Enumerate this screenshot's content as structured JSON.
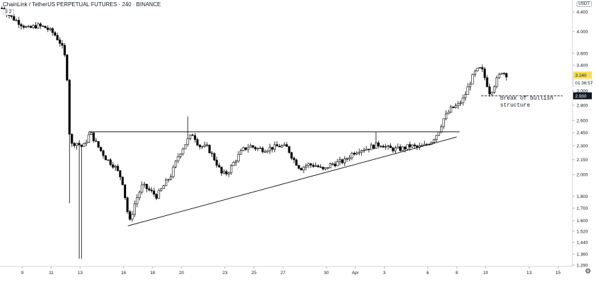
{
  "header": {
    "symbol_line": "ChainLink / TetherUS PERPETUAL FUTURES · 240 · BINANCE",
    "interval_chip": "3  2",
    "currency": "USDT"
  },
  "colors": {
    "up_candle": "#ffffff",
    "down_candle": "#000000",
    "wick": "#000000",
    "trendline": "#000000",
    "last_price_tag": "#f5e04b",
    "level_tag": "#131722"
  },
  "chart_data": {
    "type": "candlestick",
    "y_scale": "log",
    "ylim": [
      1.29,
      4.6
    ],
    "y_ticks": [
      "4.400",
      "4.000",
      "3.600",
      "3.400",
      "3.000",
      "2.800",
      "2.600",
      "2.450",
      "2.300",
      "2.150",
      "2.000",
      "1.800",
      "1.700",
      "1.600",
      "1.520",
      "1.440",
      "1.360",
      "1.290"
    ],
    "x_ticks": [
      {
        "label": "9",
        "day": 9
      },
      {
        "label": "11",
        "day": 11
      },
      {
        "label": "13",
        "day": 13
      },
      {
        "label": "16",
        "day": 16
      },
      {
        "label": "18",
        "day": 18
      },
      {
        "label": "20",
        "day": 20
      },
      {
        "label": "23",
        "day": 23
      },
      {
        "label": "25",
        "day": 25
      },
      {
        "label": "27",
        "day": 27
      },
      {
        "label": "30",
        "day": 30
      },
      {
        "label": "Apr",
        "day": 32
      },
      {
        "label": "3",
        "day": 34
      },
      {
        "label": "6",
        "day": 37
      },
      {
        "label": "8",
        "day": 39
      },
      {
        "label": "10",
        "day": 41
      },
      {
        "label": "13",
        "day": 44
      },
      {
        "label": "15",
        "day": 46
      }
    ],
    "price_tags": [
      {
        "label": "3.240",
        "value": 3.24,
        "kind": "last"
      },
      {
        "label": "01:36:57",
        "value": 3.12,
        "kind": "countdown"
      },
      {
        "label": "2.930",
        "value": 2.93,
        "kind": "level"
      }
    ],
    "trendlines": [
      {
        "name": "horizontal-resistance",
        "from": {
          "day": 13.6,
          "price": 2.46
        },
        "to": {
          "day": 39.2,
          "price": 2.46
        },
        "style": "solid"
      },
      {
        "name": "ascending-support",
        "from": {
          "day": 16.3,
          "price": 1.56
        },
        "to": {
          "day": 39.0,
          "price": 2.4
        },
        "style": "solid"
      },
      {
        "name": "break-of-structure",
        "from": {
          "day": 40.7,
          "price": 2.93
        },
        "to": {
          "day": 46.3,
          "price": 2.93
        },
        "style": "dashed"
      }
    ],
    "annotation": {
      "line1": "break of bullish",
      "line2": "structure",
      "day": 42.0,
      "price": 2.84
    },
    "ohlc_keypoints": [
      [
        7.6,
        4.48
      ],
      [
        8.2,
        4.3
      ],
      [
        8.8,
        4.18
      ],
      [
        9.4,
        4.05
      ],
      [
        10.0,
        4.12
      ],
      [
        10.6,
        4.08
      ],
      [
        11.2,
        3.96
      ],
      [
        11.6,
        3.8
      ],
      [
        11.9,
        3.62
      ],
      [
        12.1,
        3.2
      ],
      [
        12.3,
        2.3
      ],
      [
        12.7,
        2.34
      ],
      [
        13.2,
        2.28
      ],
      [
        13.7,
        2.45
      ],
      [
        14.2,
        2.3
      ],
      [
        14.8,
        2.16
      ],
      [
        15.4,
        2.08
      ],
      [
        15.9,
        1.95
      ],
      [
        16.2,
        1.72
      ],
      [
        16.4,
        1.58
      ],
      [
        16.8,
        1.75
      ],
      [
        17.3,
        1.9
      ],
      [
        17.8,
        1.85
      ],
      [
        18.3,
        1.8
      ],
      [
        18.8,
        1.9
      ],
      [
        19.3,
        2.0
      ],
      [
        19.8,
        2.2
      ],
      [
        20.4,
        2.36
      ],
      [
        20.8,
        2.44
      ],
      [
        21.2,
        2.3
      ],
      [
        21.8,
        2.28
      ],
      [
        22.3,
        2.15
      ],
      [
        22.8,
        2.0
      ],
      [
        23.2,
        2.02
      ],
      [
        23.7,
        2.14
      ],
      [
        24.2,
        2.25
      ],
      [
        24.7,
        2.3
      ],
      [
        25.2,
        2.27
      ],
      [
        25.7,
        2.26
      ],
      [
        26.3,
        2.28
      ],
      [
        26.8,
        2.3
      ],
      [
        27.3,
        2.28
      ],
      [
        27.7,
        2.16
      ],
      [
        28.2,
        2.06
      ],
      [
        28.7,
        2.1
      ],
      [
        29.3,
        2.09
      ],
      [
        29.8,
        2.04
      ],
      [
        30.3,
        2.1
      ],
      [
        30.8,
        2.12
      ],
      [
        31.3,
        2.14
      ],
      [
        31.8,
        2.22
      ],
      [
        32.3,
        2.26
      ],
      [
        32.8,
        2.27
      ],
      [
        33.3,
        2.3
      ],
      [
        33.8,
        2.32
      ],
      [
        34.3,
        2.27
      ],
      [
        34.8,
        2.26
      ],
      [
        35.3,
        2.27
      ],
      [
        35.8,
        2.3
      ],
      [
        36.3,
        2.28
      ],
      [
        36.8,
        2.3
      ],
      [
        37.3,
        2.36
      ],
      [
        37.7,
        2.45
      ],
      [
        38.1,
        2.62
      ],
      [
        38.6,
        2.75
      ],
      [
        39.1,
        2.8
      ],
      [
        39.5,
        2.9
      ],
      [
        39.9,
        3.12
      ],
      [
        40.3,
        3.3
      ],
      [
        40.7,
        3.35
      ],
      [
        41.0,
        3.16
      ],
      [
        41.3,
        2.96
      ],
      [
        41.7,
        3.14
      ],
      [
        42.1,
        3.3
      ],
      [
        42.5,
        3.24
      ]
    ]
  }
}
